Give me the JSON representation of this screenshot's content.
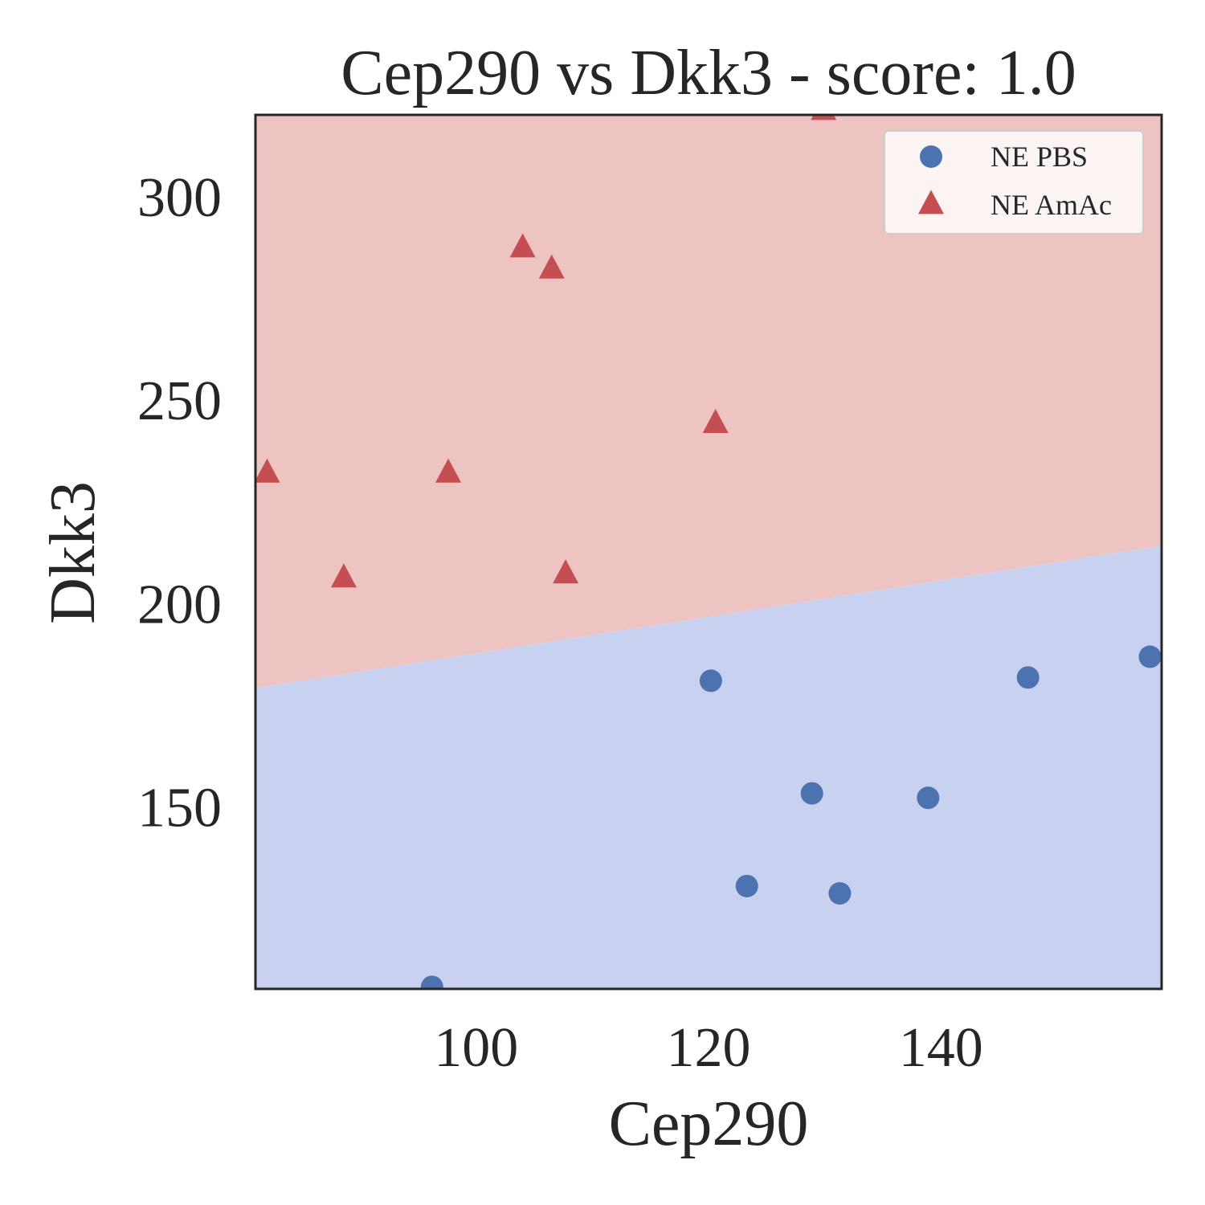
{
  "chart_data": {
    "type": "scatter",
    "title": "Cep290 vs Dkk3 - score: 1.0",
    "xlabel": "Cep290",
    "ylabel": "Dkk3",
    "xlim": [
      81,
      159
    ],
    "ylim": [
      105,
      320
    ],
    "xticks": [
      100,
      120,
      140
    ],
    "yticks": [
      150,
      200,
      250,
      300
    ],
    "grid": false,
    "legend_position": "top-right",
    "decision_boundary": {
      "line": [
        [
          81,
          179
        ],
        [
          159,
          214
        ]
      ],
      "region_above_color": "#eec4c3",
      "region_below_color": "#c9d1f1"
    },
    "series": [
      {
        "name": "NE PBS",
        "marker": "circle",
        "color": "#4c72b0",
        "points": [
          [
            96.2,
            105.5
          ],
          [
            120.2,
            180.8
          ],
          [
            123.3,
            130.3
          ],
          [
            128.9,
            153.1
          ],
          [
            131.3,
            128.5
          ],
          [
            138.9,
            152.0
          ],
          [
            147.5,
            181.6
          ],
          [
            158.0,
            186.7
          ]
        ]
      },
      {
        "name": "NE AmAc",
        "marker": "triangle",
        "color": "#c44e52",
        "points": [
          [
            82.0,
            231.8
          ],
          [
            88.6,
            206.0
          ],
          [
            97.6,
            231.8
          ],
          [
            104.0,
            287.2
          ],
          [
            106.5,
            282.0
          ],
          [
            107.7,
            207.0
          ],
          [
            120.6,
            244.0
          ],
          [
            129.9,
            321.0
          ]
        ]
      }
    ]
  }
}
